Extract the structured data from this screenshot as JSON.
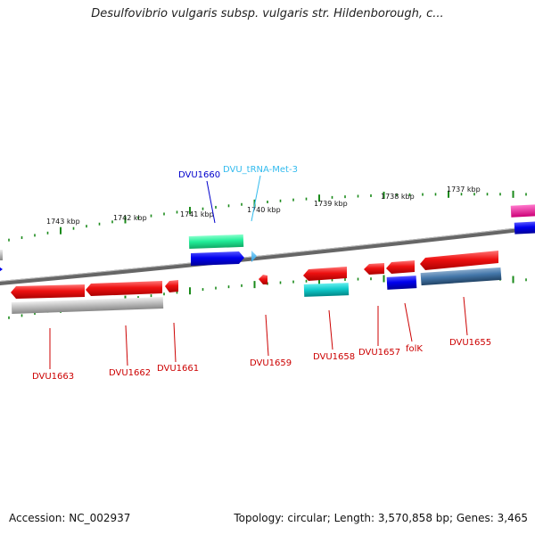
{
  "title": "Desulfovibrio vulgaris subsp. vulgaris str. Hildenborough, c...",
  "ruler": {
    "ticks": [
      "1743 kbp",
      "1742 kbp",
      "1741 kbp",
      "1740 kbp",
      "1739 kbp",
      "1738 kbp",
      "1737 kbp"
    ]
  },
  "genes": [
    {
      "name": "DVU1663",
      "strand": "-",
      "color": "#ee1111"
    },
    {
      "name": "DVU1662",
      "strand": "-",
      "color": "#ee1111"
    },
    {
      "name": "DVU1661",
      "strand": "-",
      "color": "#ee1111"
    },
    {
      "name": "DVU1660",
      "strand": "+",
      "color": "#0000dd"
    },
    {
      "name": "DVU_tRNA-Met-3",
      "strand": "+",
      "color": "#33bbee"
    },
    {
      "name": "DVU1659",
      "strand": "-",
      "color": "#ee1111"
    },
    {
      "name": "DVU1658",
      "strand": "-",
      "color": "#ee1111"
    },
    {
      "name": "DVU1657",
      "strand": "-",
      "color": "#ee1111"
    },
    {
      "name": "folK",
      "strand": "-",
      "color": "#ee1111"
    },
    {
      "name": "DVU1655",
      "strand": "-",
      "color": "#ee1111"
    }
  ],
  "footer": {
    "accession": "Accession: NC_002937",
    "stats": "Topology: circular; Length: 3,570,858 bp; Genes: 3,465"
  }
}
